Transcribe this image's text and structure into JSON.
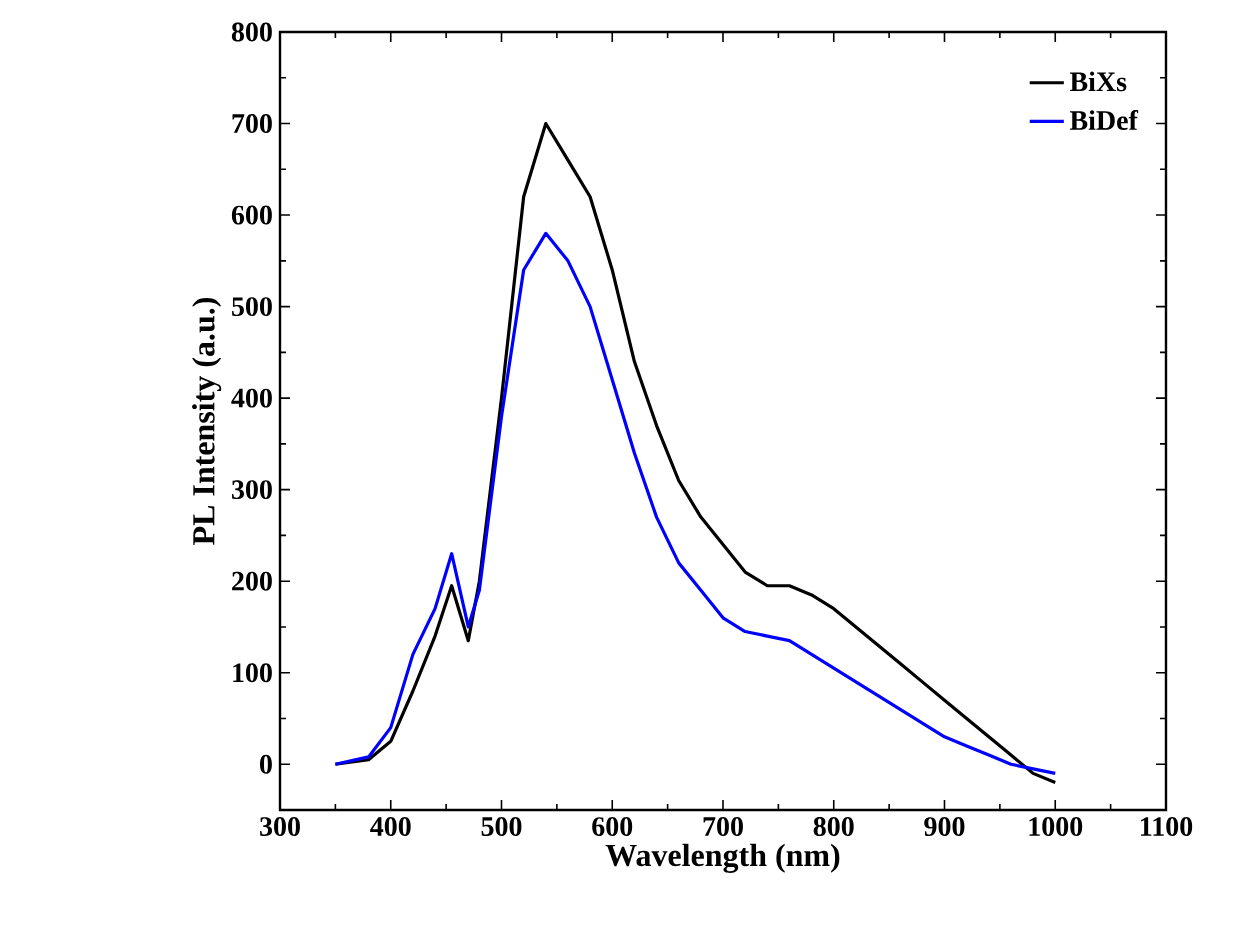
{
  "chart_data": {
    "type": "line",
    "xlabel": "Wavelength (nm)",
    "ylabel": "PL Intensity (a.u.)",
    "x": [
      350,
      380,
      400,
      420,
      440,
      455,
      470,
      480,
      500,
      520,
      540,
      560,
      580,
      600,
      620,
      640,
      660,
      680,
      700,
      720,
      740,
      760,
      780,
      800,
      820,
      840,
      860,
      880,
      900,
      920,
      940,
      960,
      980,
      1000
    ],
    "series": [
      {
        "name": "BiXs",
        "color": "#000000",
        "values": [
          0,
          5,
          25,
          80,
          140,
          195,
          135,
          200,
          400,
          620,
          700,
          660,
          620,
          540,
          440,
          370,
          310,
          270,
          240,
          210,
          195,
          195,
          185,
          170,
          150,
          130,
          110,
          90,
          70,
          50,
          30,
          10,
          -10,
          -20
        ]
      },
      {
        "name": "BiDef",
        "color": "#0000ff",
        "values": [
          0,
          8,
          40,
          120,
          170,
          230,
          150,
          190,
          380,
          540,
          580,
          550,
          500,
          420,
          340,
          270,
          220,
          190,
          160,
          145,
          140,
          135,
          120,
          105,
          90,
          75,
          60,
          45,
          30,
          20,
          10,
          0,
          -5,
          -10
        ]
      }
    ],
    "xlim": [
      300,
      1100
    ],
    "ylim": [
      -50,
      800
    ],
    "xticks": [
      300,
      400,
      500,
      600,
      700,
      800,
      900,
      1000,
      1100
    ],
    "yticks": [
      0,
      100,
      200,
      300,
      400,
      500,
      600,
      700,
      800
    ],
    "legend": "top right",
    "grid": false
  }
}
